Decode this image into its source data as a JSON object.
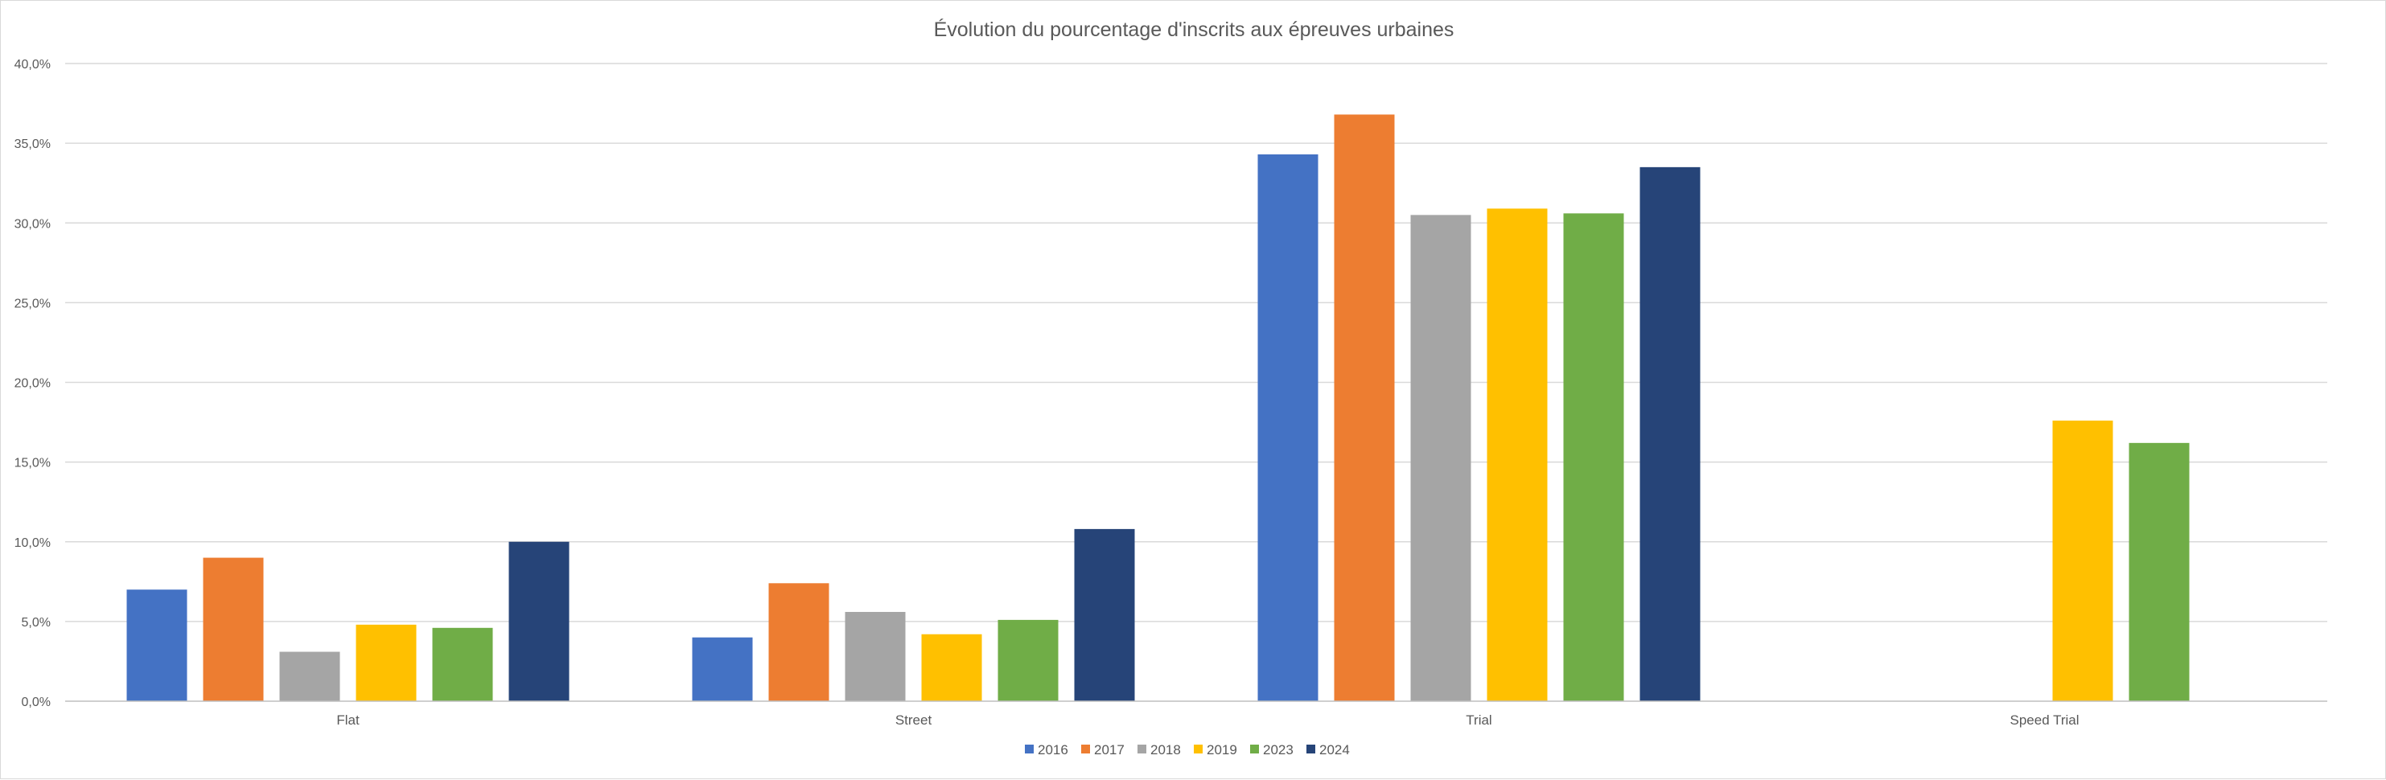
{
  "chart_data": {
    "type": "bar",
    "title": "Évolution du pourcentage d'inscrits aux épreuves urbaines",
    "xlabel": "",
    "ylabel": "",
    "ylim": [
      0,
      40
    ],
    "y_ticks": [
      0,
      5,
      10,
      15,
      20,
      25,
      30,
      35,
      40
    ],
    "y_tick_labels": [
      "0,0%",
      "5,0%",
      "10,0%",
      "15,0%",
      "20,0%",
      "25,0%",
      "30,0%",
      "35,0%",
      "40,0%"
    ],
    "grid": true,
    "legend_position": "bottom",
    "categories": [
      "Flat",
      "Street",
      "Trial",
      "Speed Trial"
    ],
    "series": [
      {
        "name": "2016",
        "color": "#4472C4",
        "values": [
          7.0,
          4.0,
          34.3,
          null
        ]
      },
      {
        "name": "2017",
        "color": "#ED7D31",
        "values": [
          9.0,
          7.4,
          36.8,
          null
        ]
      },
      {
        "name": "2018",
        "color": "#A5A5A5",
        "values": [
          3.1,
          5.6,
          30.5,
          null
        ]
      },
      {
        "name": "2019",
        "color": "#FFC000",
        "values": [
          4.8,
          4.2,
          30.9,
          17.6
        ]
      },
      {
        "name": "2023",
        "color": "#70AD47",
        "values": [
          4.6,
          5.1,
          30.6,
          16.2
        ]
      },
      {
        "name": "2024",
        "color": "#264478",
        "values": [
          10.0,
          10.8,
          33.5,
          null
        ]
      }
    ]
  }
}
